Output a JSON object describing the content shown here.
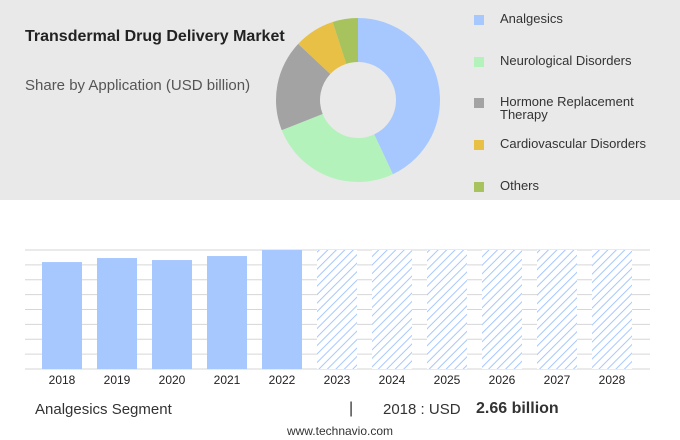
{
  "chart_data": [
    {
      "type": "pie",
      "donut": true,
      "title": "Transdermal Drug Delivery Market",
      "subtitle": "Share by Application (USD billion)",
      "categories": [
        "Analgesics",
        "Neurological Disorders",
        "Hormone Replacement Therapy",
        "Cardiovascular Disorders",
        "Others"
      ],
      "values": [
        43,
        26,
        18,
        8,
        5
      ],
      "colors": [
        "#a6c8ff",
        "#b4f2bb",
        "#a3a3a3",
        "#e9c046",
        "#a6c35d"
      ],
      "legend": "right"
    },
    {
      "type": "bar",
      "categories": [
        "2018",
        "2019",
        "2020",
        "2021",
        "2022",
        "2023",
        "2024",
        "2025",
        "2026",
        "2027",
        "2028"
      ],
      "values": [
        2.66,
        2.76,
        2.71,
        2.81,
        2.96,
        null,
        null,
        null,
        null,
        null,
        null
      ],
      "color": "#a6c8ff",
      "ylim": [
        0,
        2.96
      ],
      "grid": true
    }
  ],
  "footer": {
    "segment": "Analgesics Segment",
    "separator": "|",
    "year_label": "2018 : USD",
    "value_label": "2.66 billion",
    "source": "www.technavio.com"
  }
}
